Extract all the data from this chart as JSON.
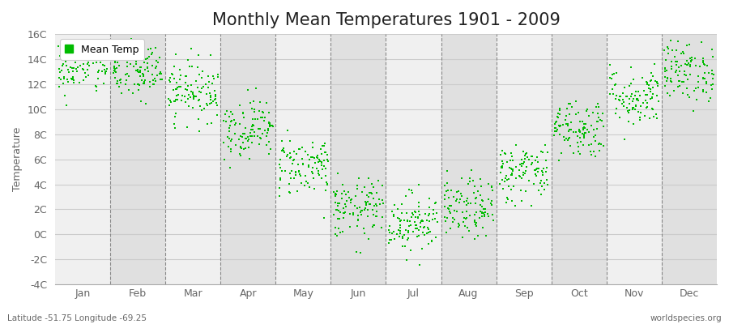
{
  "title": "Monthly Mean Temperatures 1901 - 2009",
  "ylabel": "Temperature",
  "subtitle_left": "Latitude -51.75 Longitude -69.25",
  "subtitle_right": "worldspecies.org",
  "ylim": [
    -4,
    16
  ],
  "yticks": [
    -4,
    -2,
    0,
    2,
    4,
    6,
    8,
    10,
    12,
    14,
    16
  ],
  "ytick_labels": [
    "-4C",
    "-2C",
    "0C",
    "2C",
    "4C",
    "6C",
    "8C",
    "10C",
    "12C",
    "14C",
    "16C"
  ],
  "months": [
    "Jan",
    "Feb",
    "Mar",
    "Apr",
    "May",
    "Jun",
    "Jul",
    "Aug",
    "Sep",
    "Oct",
    "Nov",
    "Dec"
  ],
  "dot_color": "#00bb00",
  "fig_bg_color": "#ffffff",
  "plot_bg_color": "#f0f0f0",
  "alt_band_color": "#e0e0e0",
  "title_fontsize": 15,
  "label_fontsize": 9,
  "tick_fontsize": 9,
  "legend_label": "Mean Temp",
  "num_years": 109,
  "seed": 42,
  "monthly_means": [
    13.5,
    13.0,
    11.5,
    8.5,
    5.5,
    2.0,
    1.0,
    2.0,
    5.0,
    8.5,
    11.0,
    13.0
  ],
  "monthly_stds": [
    1.2,
    1.2,
    1.2,
    1.2,
    1.2,
    1.2,
    1.2,
    1.2,
    1.2,
    1.2,
    1.2,
    1.2
  ]
}
